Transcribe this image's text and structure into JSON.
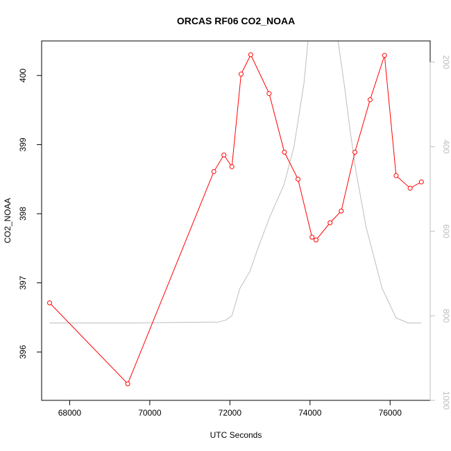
{
  "chart_data": {
    "type": "line",
    "title": "ORCAS RF06 CO2_NOAA",
    "xlabel": "UTC Seconds",
    "ylabel": "CO2_NOAA",
    "xlim": [
      67300,
      77000
    ],
    "ylim": [
      395.3,
      400.5
    ],
    "y2lim": [
      1000,
      150
    ],
    "x_ticks": [
      {
        "value": 68000,
        "label": "68000"
      },
      {
        "value": 70000,
        "label": "70000"
      },
      {
        "value": 72000,
        "label": "72000"
      },
      {
        "value": 74000,
        "label": "74000"
      },
      {
        "value": 76000,
        "label": "76000"
      }
    ],
    "y_ticks": [
      {
        "value": 396,
        "label": "396"
      },
      {
        "value": 397,
        "label": "397"
      },
      {
        "value": 398,
        "label": "398"
      },
      {
        "value": 399,
        "label": "399"
      },
      {
        "value": 400,
        "label": "400"
      }
    ],
    "y2_ticks": [
      {
        "value": 200,
        "label": "200"
      },
      {
        "value": 400,
        "label": "400"
      },
      {
        "value": 600,
        "label": "600"
      },
      {
        "value": 800,
        "label": "800"
      },
      {
        "value": 1000,
        "label": "1000"
      }
    ],
    "grid": false,
    "series": [
      {
        "color": "#ff0000",
        "marker": "open-circle",
        "x": [
          67500,
          69450,
          71600,
          71850,
          72050,
          72280,
          72520,
          72980,
          73360,
          73700,
          74050,
          74150,
          74500,
          74780,
          75120,
          75500,
          75860,
          76150,
          76500,
          76780
        ],
        "y": [
          396.71,
          395.54,
          398.61,
          398.85,
          398.68,
          400.02,
          400.3,
          399.74,
          398.89,
          398.5,
          397.66,
          397.62,
          397.87,
          398.04,
          398.89,
          399.65,
          400.29,
          398.55,
          398.37,
          398.46
        ]
      },
      {
        "color": "#bdbdbd",
        "axis": "right",
        "x": [
          67500,
          68500,
          69500,
          70500,
          71500,
          71700,
          71900,
          72050,
          72250,
          72500,
          72700,
          73000,
          73350,
          73600,
          73850,
          73950,
          74700,
          74850,
          75000,
          75150,
          75400,
          75800,
          76150,
          76450,
          76780
        ],
        "y": [
          817,
          817,
          817,
          816,
          815,
          815,
          810,
          800,
          735,
          695,
          640,
          565,
          490,
          400,
          250,
          150,
          150,
          250,
          360,
          460,
          590,
          735,
          805,
          817,
          817
        ]
      }
    ]
  }
}
